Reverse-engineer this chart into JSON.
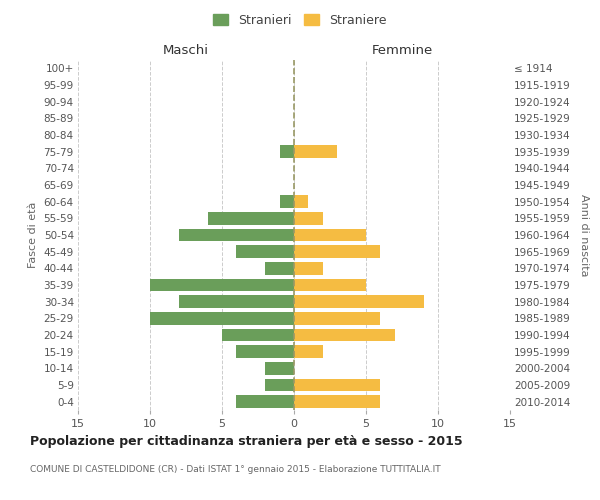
{
  "age_groups": [
    "0-4",
    "5-9",
    "10-14",
    "15-19",
    "20-24",
    "25-29",
    "30-34",
    "35-39",
    "40-44",
    "45-49",
    "50-54",
    "55-59",
    "60-64",
    "65-69",
    "70-74",
    "75-79",
    "80-84",
    "85-89",
    "90-94",
    "95-99",
    "100+"
  ],
  "birth_years": [
    "2010-2014",
    "2005-2009",
    "2000-2004",
    "1995-1999",
    "1990-1994",
    "1985-1989",
    "1980-1984",
    "1975-1979",
    "1970-1974",
    "1965-1969",
    "1960-1964",
    "1955-1959",
    "1950-1954",
    "1945-1949",
    "1940-1944",
    "1935-1939",
    "1930-1934",
    "1925-1929",
    "1920-1924",
    "1915-1919",
    "≤ 1914"
  ],
  "males": [
    4,
    2,
    2,
    4,
    5,
    10,
    8,
    10,
    2,
    4,
    8,
    6,
    1,
    0,
    0,
    1,
    0,
    0,
    0,
    0,
    0
  ],
  "females": [
    6,
    6,
    0,
    2,
    7,
    6,
    9,
    5,
    2,
    6,
    5,
    2,
    1,
    0,
    0,
    3,
    0,
    0,
    0,
    0,
    0
  ],
  "male_color": "#6a9e5a",
  "female_color": "#f5bc42",
  "title": "Popolazione per cittadinanza straniera per età e sesso - 2015",
  "subtitle": "COMUNE DI CASTELDIDONE (CR) - Dati ISTAT 1° gennaio 2015 - Elaborazione TUTTITALIA.IT",
  "xlabel_left": "Maschi",
  "xlabel_right": "Femmine",
  "ylabel_left": "Fasce di età",
  "ylabel_right": "Anni di nascita",
  "legend_male": "Stranieri",
  "legend_female": "Straniere",
  "xlim": 15,
  "background_color": "#ffffff",
  "grid_color": "#cccccc",
  "bar_height": 0.75
}
